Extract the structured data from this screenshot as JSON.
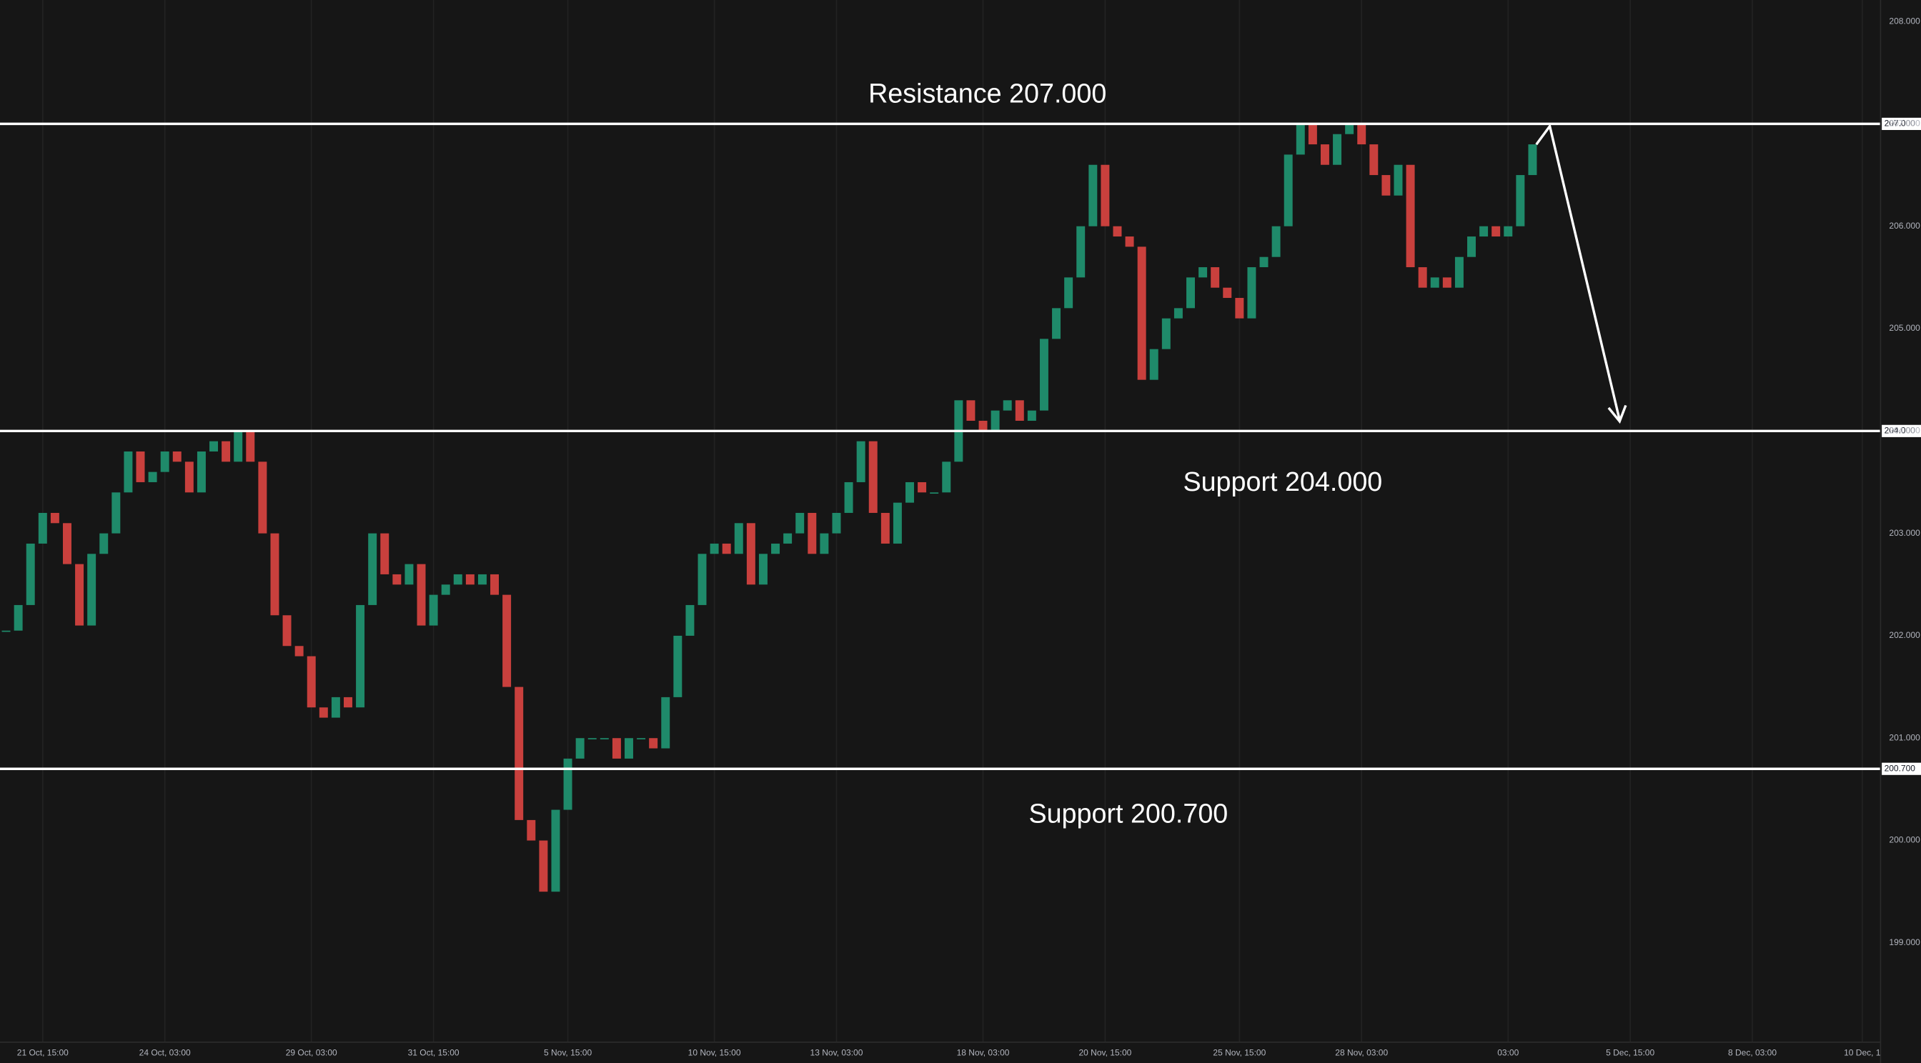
{
  "chart_data": {
    "type": "candle",
    "categories": [
      null,
      null,
      null,
      "21 Oct, 15:00",
      null,
      null,
      null,
      null,
      null,
      null,
      null,
      null,
      null,
      "24 Oct, 03:00",
      null,
      null,
      null,
      null,
      null,
      null,
      null,
      null,
      null,
      null,
      null,
      "29 Oct, 03:00",
      null,
      null,
      null,
      null,
      null,
      null,
      null,
      null,
      null,
      "31 Oct, 15:00",
      null,
      null,
      null,
      null,
      null,
      null,
      null,
      null,
      null,
      null,
      "5 Nov, 15:00",
      null,
      null,
      null,
      null,
      null,
      null,
      null,
      null,
      null,
      null,
      null,
      "10 Nov, 15:00",
      null,
      null,
      null,
      null,
      null,
      null,
      null,
      null,
      null,
      "13 Nov, 03:00",
      null,
      null,
      null,
      null,
      null,
      null,
      null,
      null,
      null,
      null,
      null,
      "18 Nov, 03:00",
      null,
      null,
      null,
      null,
      null,
      null,
      null,
      null,
      null,
      "20 Nov, 15:00",
      null,
      null,
      null,
      null,
      null,
      null,
      null,
      null,
      null,
      null,
      "25 Nov, 15:00",
      null,
      null,
      null,
      null,
      null,
      null,
      null,
      null,
      null,
      "28 Nov, 03:00",
      null,
      null,
      null,
      null,
      null,
      null,
      null,
      null,
      null,
      null,
      null,
      "03:00",
      null,
      null,
      null,
      null,
      null,
      null,
      null,
      null,
      null,
      "5 Dec, 15:00",
      null,
      null,
      null,
      null,
      null,
      null,
      null,
      null,
      null,
      "8 Dec, 03:00",
      null,
      null,
      null,
      null,
      null,
      null,
      null,
      null,
      "10 Dec, 1",
      null
    ],
    "values": [
      202.05,
      202.3,
      202.9,
      203.2,
      203.1,
      202.7,
      202.1,
      202.8,
      203.0,
      203.4,
      203.8,
      203.5,
      203.6,
      203.8,
      203.7,
      203.4,
      203.8,
      203.9,
      203.7,
      204.0,
      203.7,
      203.0,
      202.2,
      201.9,
      201.8,
      201.3,
      201.2,
      201.4,
      201.3,
      202.3,
      203.0,
      202.6,
      202.5,
      202.7,
      202.1,
      202.4,
      202.5,
      202.6,
      202.5,
      202.6,
      202.4,
      201.5,
      200.2,
      200.0,
      199.5,
      200.3,
      200.8,
      201.0,
      201.0,
      201.0,
      200.8,
      201.0,
      201.0,
      200.9,
      201.4,
      202.0,
      202.3,
      202.8,
      202.9,
      202.8,
      203.1,
      202.5,
      202.8,
      202.9,
      203.0,
      203.2,
      202.8,
      203.0,
      203.2,
      203.5,
      203.9,
      203.2,
      202.9,
      203.3,
      203.5,
      203.4,
      203.4,
      203.7,
      204.3,
      204.1,
      204.0,
      204.2,
      204.3,
      204.1,
      204.2,
      204.9,
      205.2,
      205.5,
      206.0,
      206.6,
      206.0,
      205.9,
      205.8,
      204.5,
      204.8,
      205.1,
      205.2,
      205.5,
      205.6,
      205.4,
      205.3,
      205.1,
      205.6,
      205.7,
      206.0,
      206.7,
      207.0,
      206.8,
      206.6,
      206.9,
      207.0,
      206.8,
      206.5,
      206.3,
      206.6,
      205.6,
      205.4,
      205.5,
      205.4,
      205.7,
      205.9,
      206.0,
      205.9,
      206.0,
      206.5,
      206.8,
      null,
      null,
      null,
      null,
      null,
      null,
      null,
      null,
      null,
      null,
      null,
      null,
      null,
      null,
      null,
      null,
      null,
      null,
      null,
      null,
      null,
      null,
      null,
      null,
      null,
      null,
      null,
      null
    ],
    "up_color": "#1f8a6a",
    "down_color": "#c9403d",
    "ylim": [
      198.03,
      208.21
    ],
    "yticks": [
      {
        "value": 199,
        "label": "199.000"
      },
      {
        "value": 200,
        "label": "200.000"
      },
      {
        "value": 201,
        "label": "201.000"
      },
      {
        "value": 202,
        "label": "202.000"
      },
      {
        "value": 203,
        "label": "203.000"
      },
      {
        "value": 204,
        "label": "204.000"
      },
      {
        "value": 205,
        "label": "205.000"
      },
      {
        "value": 206,
        "label": "206.000"
      },
      {
        "value": 207,
        "label": "207.000"
      },
      {
        "value": 208,
        "label": "208.000"
      }
    ],
    "grid": true,
    "levels": [
      {
        "value": 207,
        "label": "207.000",
        "text": "Resistance 207.000"
      },
      {
        "value": 204,
        "label": "204.000",
        "text": "Support 204.000"
      },
      {
        "value": 200.7,
        "label": "200.700",
        "text": "Support 200.700"
      }
    ]
  }
}
